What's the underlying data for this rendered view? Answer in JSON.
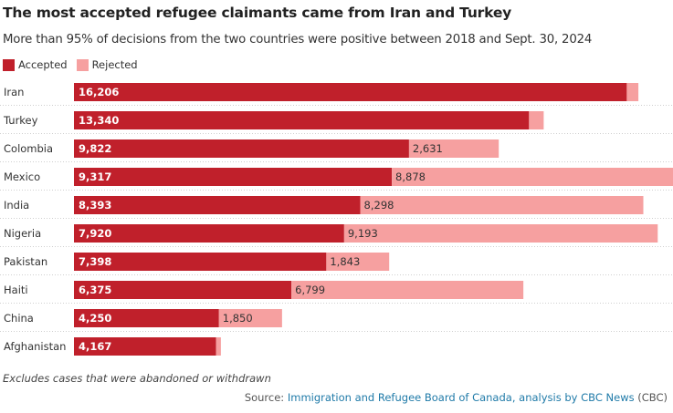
{
  "title": "The most accepted refugee claimants came from Iran and Turkey",
  "subtitle": "More than 95% of decisions from the two countries were positive between 2018 and Sept. 30, 2024",
  "note": "Excludes cases that were abandoned or withdrawn",
  "source": {
    "prefix": "Source: ",
    "link_text": "Immigration and Refugee Board of Canada, analysis by CBC News",
    "suffix": " (CBC)"
  },
  "colors": {
    "accepted": "#c0202b",
    "rejected": "#f6a0a0",
    "link": "#1f7aa8"
  },
  "chart_data": {
    "type": "bar",
    "orientation": "horizontal",
    "stacked": true,
    "categories": [
      "Iran",
      "Turkey",
      "Colombia",
      "Mexico",
      "India",
      "Nigeria",
      "Pakistan",
      "Haiti",
      "China",
      "Afghanistan"
    ],
    "series": [
      {
        "name": "Accepted",
        "color": "#c0202b",
        "values": [
          16206,
          13340,
          9822,
          9317,
          8393,
          7920,
          7398,
          6375,
          4250,
          4167
        ],
        "labels": [
          "16,206",
          "13,340",
          "9,822",
          "9,317",
          "8,393",
          "7,920",
          "7,398",
          "6,375",
          "4,250",
          "4,167"
        ]
      },
      {
        "name": "Rejected",
        "color": "#f6a0a0",
        "values": [
          340,
          430,
          2631,
          8878,
          8298,
          9193,
          1843,
          6799,
          1850,
          140
        ],
        "labels": [
          "",
          "",
          "2,631",
          "8,878",
          "8,298",
          "9,193",
          "1,843",
          "6,799",
          "1,850",
          ""
        ]
      }
    ],
    "xlim": [
      0,
      17400
    ],
    "legend_position": "top-left",
    "grid": false
  }
}
